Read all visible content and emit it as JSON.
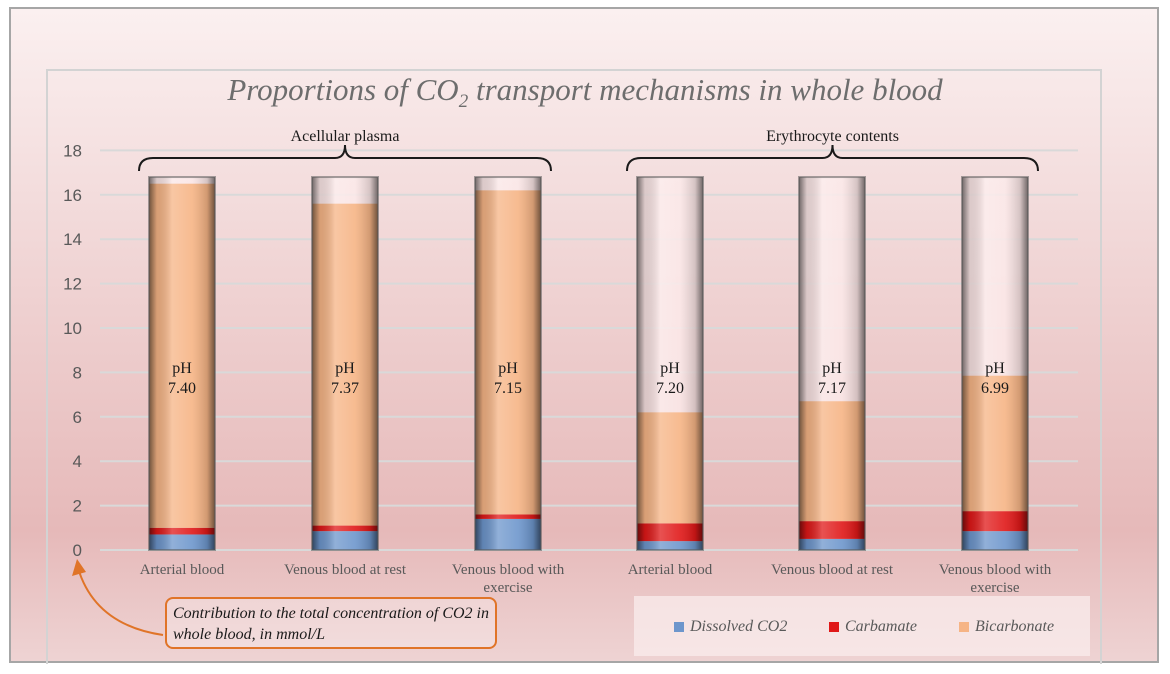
{
  "chart_data": {
    "type": "bar",
    "stacked": true,
    "title": "Proportions of CO2 transport mechanisms in whole blood",
    "title_parts": {
      "before": "Proportions of CO",
      "sub": "2",
      "after": " transport mechanisms in whole blood"
    },
    "ylim": [
      0,
      18
    ],
    "yticks": [
      0,
      2,
      4,
      6,
      8,
      10,
      12,
      14,
      16,
      18
    ],
    "grid": true,
    "legend_position": "bottom-right",
    "categories": [
      "Arterial blood",
      "Venous blood at rest",
      "Venous blood with exercise",
      "Arterial blood",
      "Venous blood at rest",
      "Venous blood with exercise"
    ],
    "groups": [
      {
        "label": "Acellular plasma",
        "categories": [
          0,
          1,
          2
        ]
      },
      {
        "label": "Erythrocyte contents",
        "categories": [
          3,
          4,
          5
        ]
      }
    ],
    "ph_label": "pH",
    "ph_values": [
      "7.40",
      "7.37",
      "7.15",
      "7.20",
      "7.17",
      "6.99"
    ],
    "total": 16.8,
    "series": [
      {
        "name": "Dissolved CO2",
        "color": "#6d96cc",
        "values": [
          0.7,
          0.85,
          1.4,
          0.4,
          0.5,
          0.85
        ]
      },
      {
        "name": "Carbamate",
        "color": "#e01818",
        "values": [
          0.3,
          0.25,
          0.2,
          0.8,
          0.8,
          0.9
        ]
      },
      {
        "name": "Bicarbonate",
        "color": "#f6b485",
        "values": [
          15.5,
          14.5,
          14.6,
          5.0,
          5.4,
          6.1
        ]
      }
    ],
    "annotation": "Contribution to the total concentration of CO2 in whole blood, in mmol/L"
  }
}
